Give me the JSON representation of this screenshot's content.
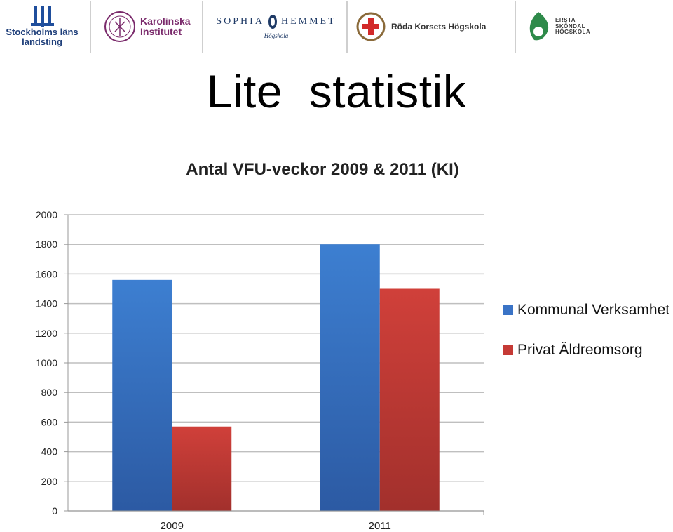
{
  "logos": [
    {
      "name": "Stockholms läns landsting",
      "lines": [
        "Stockholms läns",
        "landsting"
      ]
    },
    {
      "name": "Karolinska Institutet",
      "lines": [
        "Karolinska",
        "Institutet"
      ]
    },
    {
      "name": "Sophiahemmet Högskola",
      "lines": [
        "SOPHIA",
        "HEMMET",
        "Högskola"
      ]
    },
    {
      "name": "Röda Korsets Högskola",
      "lines": [
        "Röda Korsets Högskola"
      ]
    },
    {
      "name": "Ersta Sköndal Högskola",
      "lines": [
        "ERSTA",
        "SKÖNDAL",
        "HÖGSKOLA"
      ]
    }
  ],
  "slide_title": "Lite  statistik",
  "colors": {
    "series1": "#3a73c6",
    "series2": "#c53a35",
    "grid": "#bfbfbf"
  },
  "chart_data": {
    "type": "bar",
    "title": "Antal VFU-veckor 2009 & 2011 (KI)",
    "categories": [
      "2009",
      "2011"
    ],
    "series": [
      {
        "name": "Kommunal Verksamhet",
        "values": [
          1560,
          1800
        ]
      },
      {
        "name": "Privat Äldreomsorg",
        "values": [
          570,
          1500
        ]
      }
    ],
    "ylim": [
      0,
      2000
    ],
    "yticks": [
      "0",
      "200",
      "400",
      "600",
      "800",
      "1000",
      "1200",
      "1400",
      "1600",
      "1800",
      "2000"
    ],
    "grid": true,
    "legend": "right"
  }
}
